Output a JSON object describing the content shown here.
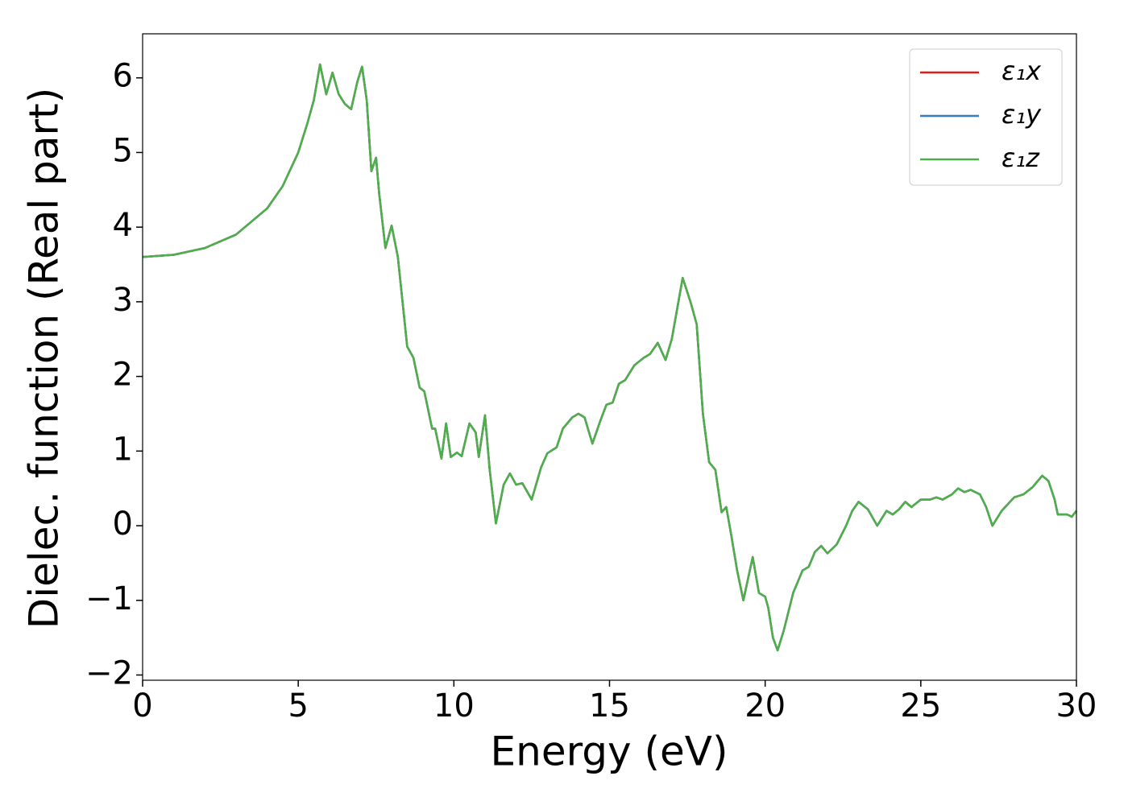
{
  "chart_data": {
    "type": "line",
    "xlabel": "Energy (eV)",
    "ylabel": "Dielec. function (Real part)",
    "x": [
      0,
      1,
      2,
      3,
      4,
      4.5,
      5,
      5.3,
      5.5,
      5.7,
      5.9,
      6.1,
      6.3,
      6.5,
      6.7,
      6.9,
      7.05,
      7.2,
      7.35,
      7.5,
      7.6,
      7.8,
      8.0,
      8.2,
      8.35,
      8.5,
      8.7,
      8.9,
      9.05,
      9.3,
      9.4,
      9.6,
      9.75,
      9.9,
      10.1,
      10.25,
      10.5,
      10.7,
      10.8,
      11.0,
      11.15,
      11.35,
      11.6,
      11.8,
      12.0,
      12.2,
      12.5,
      12.8,
      13.0,
      13.3,
      13.5,
      13.8,
      14.0,
      14.2,
      14.45,
      14.7,
      14.9,
      15.1,
      15.3,
      15.5,
      15.8,
      16.1,
      16.3,
      16.55,
      16.8,
      17.0,
      17.35,
      17.6,
      17.8,
      18.0,
      18.2,
      18.4,
      18.6,
      18.75,
      18.9,
      19.1,
      19.3,
      19.6,
      19.8,
      20.0,
      20.1,
      20.25,
      20.4,
      20.6,
      20.9,
      21.2,
      21.4,
      21.6,
      21.8,
      22.0,
      22.3,
      22.6,
      22.8,
      23.0,
      23.3,
      23.6,
      23.9,
      24.1,
      24.3,
      24.5,
      24.7,
      25.0,
      25.3,
      25.5,
      25.7,
      26.0,
      26.2,
      26.4,
      26.6,
      26.9,
      27.1,
      27.3,
      27.6,
      28.0,
      28.3,
      28.6,
      28.9,
      29.1,
      29.3,
      29.4,
      29.7,
      29.85,
      30.0
    ],
    "series": [
      {
        "name": "ε₁x",
        "color": "#e41a1c",
        "values": [
          3.6,
          3.63,
          3.72,
          3.9,
          4.25,
          4.55,
          5.0,
          5.4,
          5.7,
          6.18,
          5.78,
          6.07,
          5.78,
          5.65,
          5.58,
          5.95,
          6.15,
          5.7,
          4.75,
          4.93,
          4.45,
          3.72,
          4.02,
          3.6,
          3.0,
          2.4,
          2.25,
          1.85,
          1.8,
          1.3,
          1.3,
          0.9,
          1.37,
          0.92,
          0.98,
          0.93,
          1.37,
          1.25,
          0.92,
          1.48,
          0.75,
          0.03,
          0.55,
          0.7,
          0.55,
          0.57,
          0.35,
          0.78,
          0.97,
          1.05,
          1.3,
          1.45,
          1.5,
          1.45,
          1.1,
          1.4,
          1.62,
          1.65,
          1.9,
          1.95,
          2.15,
          2.25,
          2.3,
          2.45,
          2.22,
          2.5,
          3.32,
          3.0,
          2.7,
          1.5,
          0.85,
          0.75,
          0.18,
          0.25,
          -0.1,
          -0.6,
          -1.0,
          -0.42,
          -0.9,
          -0.95,
          -1.1,
          -1.5,
          -1.67,
          -1.4,
          -0.9,
          -0.6,
          -0.55,
          -0.35,
          -0.27,
          -0.37,
          -0.25,
          0.0,
          0.2,
          0.32,
          0.22,
          0.0,
          0.2,
          0.15,
          0.22,
          0.32,
          0.25,
          0.35,
          0.35,
          0.38,
          0.35,
          0.42,
          0.5,
          0.45,
          0.48,
          0.42,
          0.25,
          0.0,
          0.2,
          0.38,
          0.42,
          0.52,
          0.67,
          0.6,
          0.35,
          0.15,
          0.15,
          0.12,
          0.2
        ]
      },
      {
        "name": "ε₁y",
        "color": "#377eb8",
        "values": [
          3.6,
          3.63,
          3.72,
          3.9,
          4.25,
          4.55,
          5.0,
          5.4,
          5.7,
          6.18,
          5.78,
          6.07,
          5.78,
          5.65,
          5.58,
          5.95,
          6.15,
          5.7,
          4.75,
          4.93,
          4.45,
          3.72,
          4.02,
          3.6,
          3.0,
          2.4,
          2.25,
          1.85,
          1.8,
          1.3,
          1.3,
          0.9,
          1.37,
          0.92,
          0.98,
          0.93,
          1.37,
          1.25,
          0.92,
          1.48,
          0.75,
          0.03,
          0.55,
          0.7,
          0.55,
          0.57,
          0.35,
          0.78,
          0.97,
          1.05,
          1.3,
          1.45,
          1.5,
          1.45,
          1.1,
          1.4,
          1.62,
          1.65,
          1.9,
          1.95,
          2.15,
          2.25,
          2.3,
          2.45,
          2.22,
          2.5,
          3.32,
          3.0,
          2.7,
          1.5,
          0.85,
          0.75,
          0.18,
          0.25,
          -0.1,
          -0.6,
          -1.0,
          -0.42,
          -0.9,
          -0.95,
          -1.1,
          -1.5,
          -1.67,
          -1.4,
          -0.9,
          -0.6,
          -0.55,
          -0.35,
          -0.27,
          -0.37,
          -0.25,
          0.0,
          0.2,
          0.32,
          0.22,
          0.0,
          0.2,
          0.15,
          0.22,
          0.32,
          0.25,
          0.35,
          0.35,
          0.38,
          0.35,
          0.42,
          0.5,
          0.45,
          0.48,
          0.42,
          0.25,
          0.0,
          0.2,
          0.38,
          0.42,
          0.52,
          0.67,
          0.6,
          0.35,
          0.15,
          0.15,
          0.12,
          0.2
        ]
      },
      {
        "name": "ε₁z",
        "color": "#4daf4a",
        "values": [
          3.6,
          3.63,
          3.72,
          3.9,
          4.25,
          4.55,
          5.0,
          5.4,
          5.7,
          6.18,
          5.78,
          6.07,
          5.78,
          5.65,
          5.58,
          5.95,
          6.15,
          5.7,
          4.75,
          4.93,
          4.45,
          3.72,
          4.02,
          3.6,
          3.0,
          2.4,
          2.25,
          1.85,
          1.8,
          1.3,
          1.3,
          0.9,
          1.37,
          0.92,
          0.98,
          0.93,
          1.37,
          1.25,
          0.92,
          1.48,
          0.75,
          0.03,
          0.55,
          0.7,
          0.55,
          0.57,
          0.35,
          0.78,
          0.97,
          1.05,
          1.3,
          1.45,
          1.5,
          1.45,
          1.1,
          1.4,
          1.62,
          1.65,
          1.9,
          1.95,
          2.15,
          2.25,
          2.3,
          2.45,
          2.22,
          2.5,
          3.32,
          3.0,
          2.7,
          1.5,
          0.85,
          0.75,
          0.18,
          0.25,
          -0.1,
          -0.6,
          -1.0,
          -0.42,
          -0.9,
          -0.95,
          -1.1,
          -1.5,
          -1.67,
          -1.4,
          -0.9,
          -0.6,
          -0.55,
          -0.35,
          -0.27,
          -0.37,
          -0.25,
          0.0,
          0.2,
          0.32,
          0.22,
          0.0,
          0.2,
          0.15,
          0.22,
          0.32,
          0.25,
          0.35,
          0.35,
          0.38,
          0.35,
          0.42,
          0.5,
          0.45,
          0.48,
          0.42,
          0.25,
          0.0,
          0.2,
          0.38,
          0.42,
          0.52,
          0.67,
          0.6,
          0.35,
          0.15,
          0.15,
          0.12,
          0.2
        ]
      }
    ],
    "xlim": [
      0,
      30
    ],
    "xticks": [
      0,
      5,
      10,
      15,
      20,
      25,
      30
    ],
    "ylim": [
      -2.07,
      6.59
    ],
    "yticks": [
      {
        "value": -2,
        "label": "−2"
      },
      {
        "value": -1,
        "label": "−1"
      },
      0,
      1,
      2,
      3,
      4,
      5,
      6
    ],
    "grid": false,
    "legend": "upper right"
  }
}
